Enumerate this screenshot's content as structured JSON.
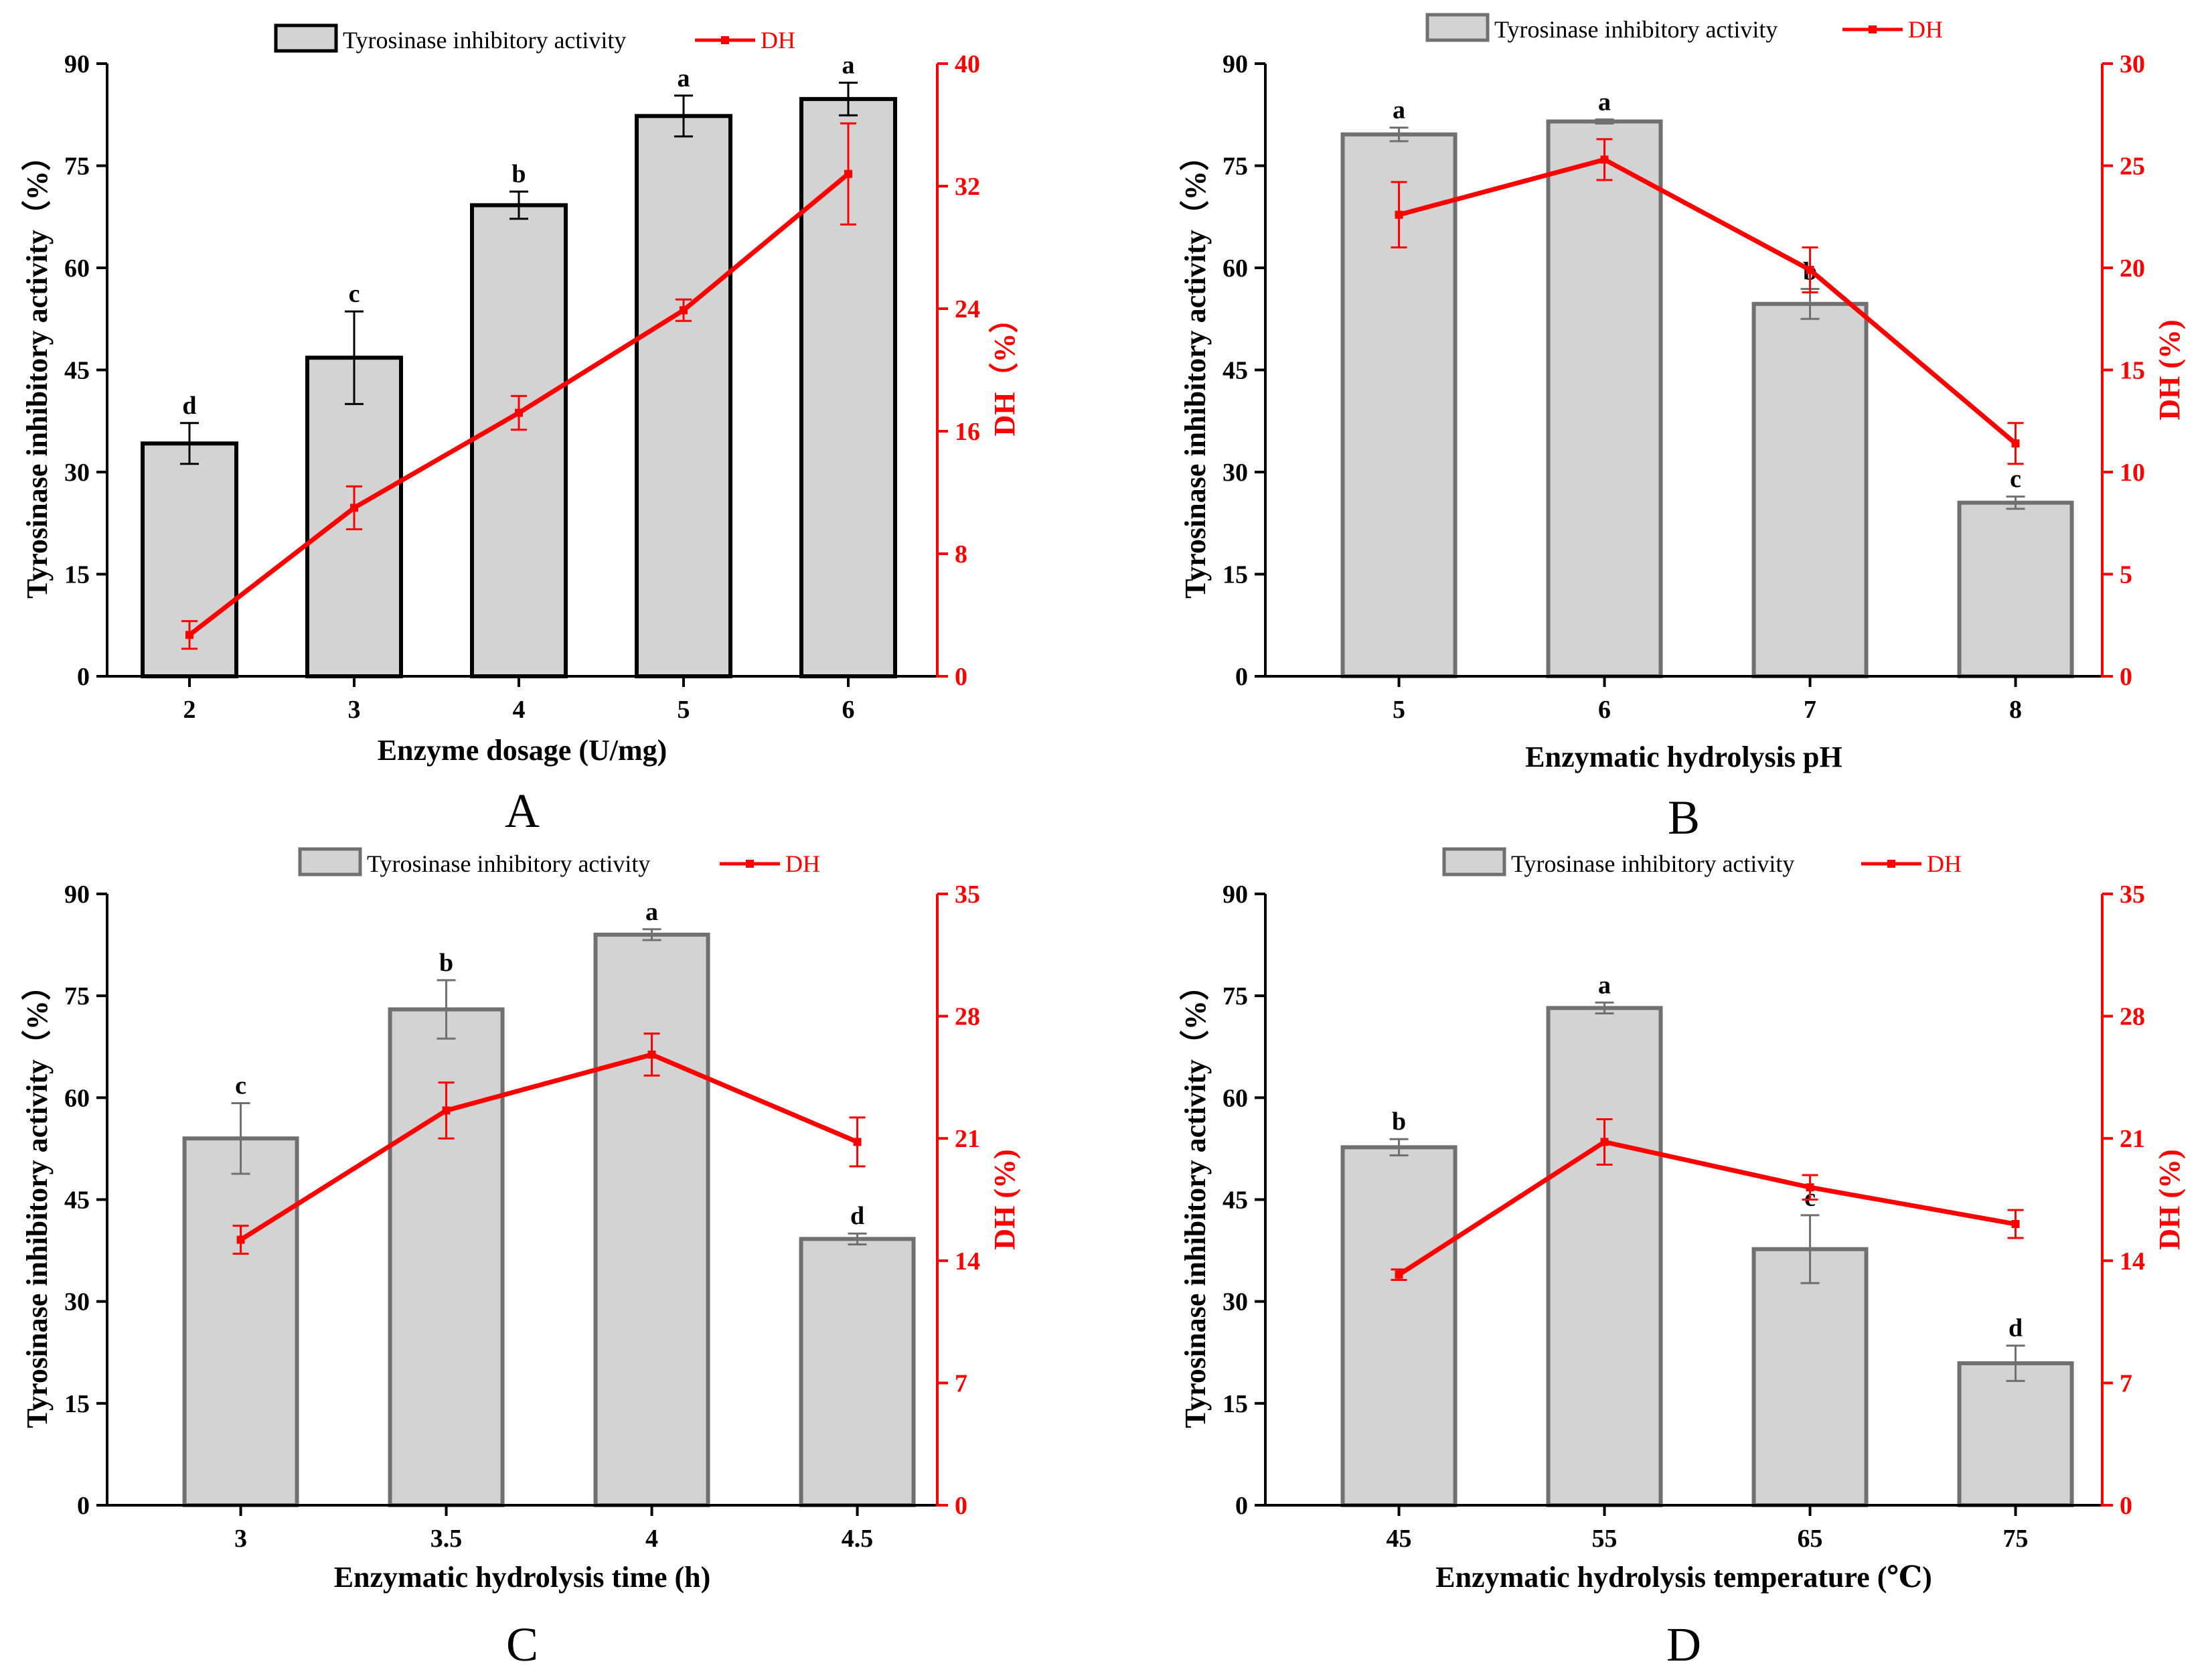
{
  "colors": {
    "bar_fill": "#d3d3d3",
    "bar_stroke_a": "#000000",
    "bar_stroke": "#707070",
    "line": "#ff0000",
    "axis": "#000000"
  },
  "chart_data": [
    {
      "type": "bar+line",
      "panel_label": "A",
      "xlabel": "Enzyme dosage (U/mg)",
      "ylabel": "Tyrosinase inhibitory activity（%）",
      "y2label": "DH（%）",
      "legend": [
        "Tyrosinase inhibitory activity",
        "DH"
      ],
      "categories": [
        "2",
        "3",
        "4",
        "5",
        "6"
      ],
      "ylim": [
        0,
        90
      ],
      "yticks": [
        "0",
        "15",
        "30",
        "45",
        "60",
        "75",
        "90"
      ],
      "y2lim": [
        0,
        40
      ],
      "y2ticks": [
        "0",
        "8",
        "16",
        "24",
        "32",
        "40"
      ],
      "series": [
        {
          "name": "Tyrosinase inhibitory activity",
          "kind": "bar",
          "axis": "left",
          "values": [
            34.2,
            46.8,
            69.2,
            82.3,
            84.8
          ],
          "errors": [
            3.0,
            6.8,
            2.0,
            3.0,
            2.4
          ],
          "labels": [
            "d",
            "c",
            "b",
            "a",
            "a"
          ]
        },
        {
          "name": "DH",
          "kind": "line",
          "axis": "right",
          "values": [
            2.7,
            11.0,
            17.2,
            23.9,
            32.8
          ],
          "errors": [
            0.9,
            1.4,
            1.1,
            0.7,
            3.3
          ]
        }
      ]
    },
    {
      "type": "bar+line",
      "panel_label": "B",
      "xlabel": "Enzymatic hydrolysis pH",
      "ylabel": "Tyrosinase inhibitory activity（%）",
      "y2label": "DH (%)",
      "legend": [
        "Tyrosinase inhibitory activity",
        "DH"
      ],
      "categories": [
        "5",
        "6",
        "7",
        "8"
      ],
      "ylim": [
        0,
        90
      ],
      "yticks": [
        "0",
        "15",
        "30",
        "45",
        "60",
        "75",
        "90"
      ],
      "y2lim": [
        0,
        30
      ],
      "y2ticks": [
        "0",
        "5",
        "10",
        "15",
        "20",
        "25",
        "30"
      ],
      "series": [
        {
          "name": "Tyrosinase inhibitory activity",
          "kind": "bar",
          "axis": "left",
          "values": [
            79.6,
            81.5,
            54.7,
            25.5
          ],
          "errors": [
            1.0,
            0.3,
            2.2,
            0.9
          ],
          "labels": [
            "a",
            "a",
            "b",
            "c"
          ]
        },
        {
          "name": "DH",
          "kind": "line",
          "axis": "right",
          "values": [
            22.6,
            25.3,
            19.9,
            11.4
          ],
          "errors": [
            1.6,
            1.0,
            1.1,
            1.0
          ]
        }
      ]
    },
    {
      "type": "bar+line",
      "panel_label": "C",
      "xlabel": "Enzymatic hydrolysis time (h)",
      "ylabel": "Tyrosinase inhibitory activity（%）",
      "y2label": "DH (%)",
      "legend": [
        "Tyrosinase inhibitory activity",
        "DH"
      ],
      "categories": [
        "3",
        "3.5",
        "4",
        "4.5"
      ],
      "ylim": [
        0,
        90
      ],
      "yticks": [
        "0",
        "15",
        "30",
        "45",
        "60",
        "75",
        "90"
      ],
      "y2lim": [
        0,
        35
      ],
      "y2ticks": [
        "0",
        "7",
        "14",
        "21",
        "28",
        "35"
      ],
      "series": [
        {
          "name": "Tyrosinase inhibitory activity",
          "kind": "bar",
          "axis": "left",
          "values": [
            54.0,
            73.0,
            84.0,
            39.2
          ],
          "errors": [
            5.2,
            4.3,
            0.8,
            0.8
          ],
          "labels": [
            "c",
            "b",
            "a",
            "d"
          ]
        },
        {
          "name": "DH",
          "kind": "line",
          "axis": "right",
          "values": [
            15.2,
            22.6,
            25.8,
            20.8
          ],
          "errors": [
            0.8,
            1.6,
            1.2,
            1.4
          ]
        }
      ]
    },
    {
      "type": "bar+line",
      "panel_label": "D",
      "xlabel": "Enzymatic hydrolysis temperature (℃)",
      "ylabel": "Tyrosinase inhibitory activity（%）",
      "y2label": "DH (%)",
      "legend": [
        "Tyrosinase inhibitory activity",
        "DH"
      ],
      "categories": [
        "45",
        "55",
        "65",
        "75"
      ],
      "ylim": [
        0,
        90
      ],
      "yticks": [
        "0",
        "15",
        "30",
        "45",
        "60",
        "75",
        "90"
      ],
      "y2lim": [
        0,
        35
      ],
      "y2ticks": [
        "0",
        "7",
        "14",
        "21",
        "28",
        "35"
      ],
      "series": [
        {
          "name": "Tyrosinase inhibitory activity",
          "kind": "bar",
          "axis": "left",
          "values": [
            52.7,
            73.2,
            37.7,
            20.9
          ],
          "errors": [
            1.2,
            0.8,
            5.0,
            2.6
          ],
          "labels": [
            "b",
            "a",
            "c",
            "d"
          ]
        },
        {
          "name": "DH",
          "kind": "line",
          "axis": "right",
          "values": [
            13.2,
            20.8,
            18.2,
            16.1
          ],
          "errors": [
            0.3,
            1.3,
            0.7,
            0.8
          ]
        }
      ]
    }
  ]
}
